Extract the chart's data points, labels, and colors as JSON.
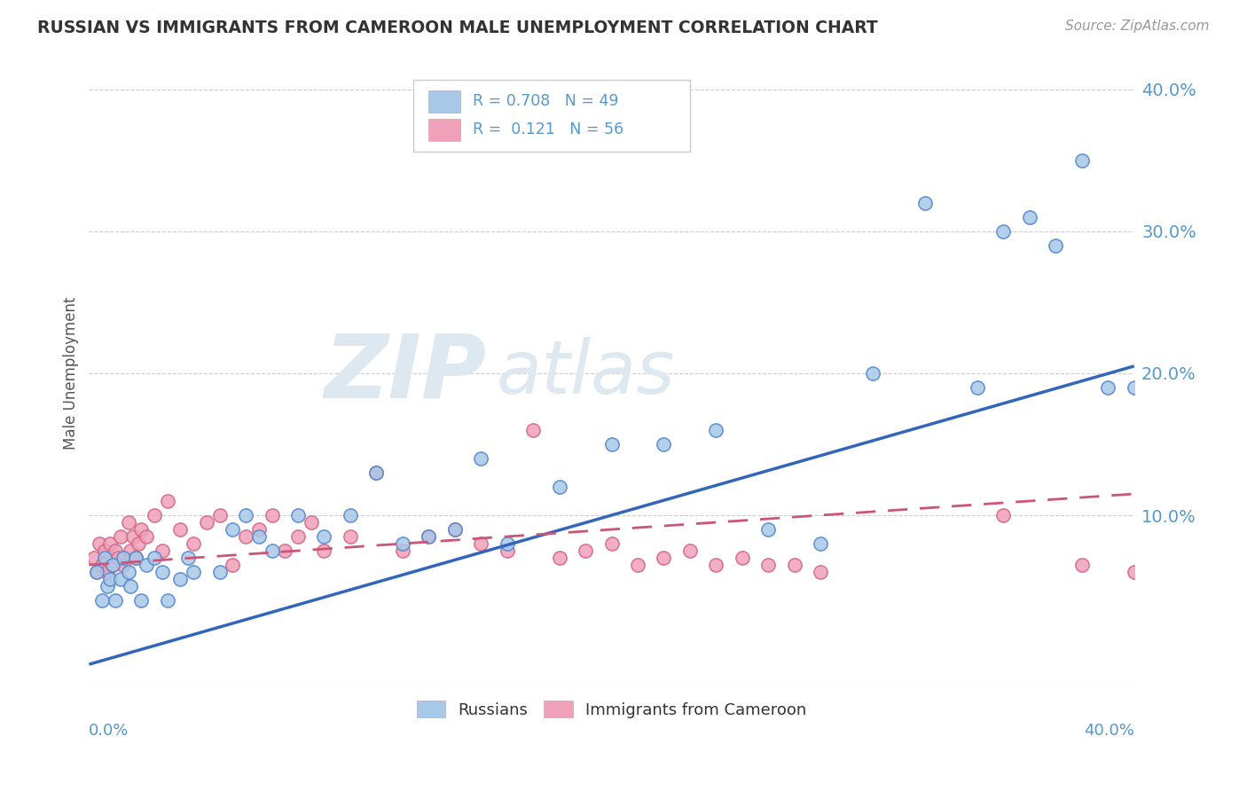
{
  "title": "RUSSIAN VS IMMIGRANTS FROM CAMEROON MALE UNEMPLOYMENT CORRELATION CHART",
  "source": "Source: ZipAtlas.com",
  "ylabel": "Male Unemployment",
  "blue_color": "#a8c8e8",
  "blue_color_dark": "#5588cc",
  "pink_color": "#f0a0b8",
  "pink_color_dark": "#d06888",
  "blue_line_color": "#3366bb",
  "pink_line_color": "#cc5577",
  "watermark_color": "#dde8f0",
  "grid_color": "#cccccc",
  "tick_color": "#5599cc",
  "title_color": "#333333",
  "source_color": "#999999",
  "ylabel_color": "#555555",
  "xlim": [
    0.0,
    0.4
  ],
  "ylim": [
    -0.02,
    0.42
  ],
  "ytick_positions": [
    0.0,
    0.1,
    0.2,
    0.3,
    0.4
  ],
  "ytick_labels": [
    "",
    "10.0%",
    "20.0%",
    "30.0%",
    "40.0%"
  ],
  "blue_line_x": [
    0.0,
    0.4
  ],
  "blue_line_y": [
    -0.005,
    0.205
  ],
  "pink_line_x": [
    0.0,
    0.4
  ],
  "pink_line_y": [
    0.065,
    0.115
  ],
  "rus_x": [
    0.003,
    0.005,
    0.006,
    0.007,
    0.008,
    0.009,
    0.01,
    0.012,
    0.013,
    0.015,
    0.016,
    0.018,
    0.02,
    0.022,
    0.025,
    0.028,
    0.03,
    0.035,
    0.038,
    0.04,
    0.05,
    0.055,
    0.06,
    0.065,
    0.07,
    0.08,
    0.09,
    0.1,
    0.11,
    0.12,
    0.13,
    0.14,
    0.15,
    0.16,
    0.18,
    0.2,
    0.22,
    0.24,
    0.26,
    0.28,
    0.3,
    0.32,
    0.34,
    0.35,
    0.36,
    0.37,
    0.38,
    0.39,
    0.4
  ],
  "rus_y": [
    0.06,
    0.04,
    0.07,
    0.05,
    0.055,
    0.065,
    0.04,
    0.055,
    0.07,
    0.06,
    0.05,
    0.07,
    0.04,
    0.065,
    0.07,
    0.06,
    0.04,
    0.055,
    0.07,
    0.06,
    0.06,
    0.09,
    0.1,
    0.085,
    0.075,
    0.1,
    0.085,
    0.1,
    0.13,
    0.08,
    0.085,
    0.09,
    0.14,
    0.08,
    0.12,
    0.15,
    0.15,
    0.16,
    0.09,
    0.08,
    0.2,
    0.32,
    0.19,
    0.3,
    0.31,
    0.29,
    0.35,
    0.19,
    0.19
  ],
  "cam_x": [
    0.002,
    0.003,
    0.004,
    0.005,
    0.006,
    0.007,
    0.008,
    0.009,
    0.01,
    0.011,
    0.012,
    0.013,
    0.015,
    0.016,
    0.017,
    0.018,
    0.019,
    0.02,
    0.022,
    0.025,
    0.028,
    0.03,
    0.035,
    0.04,
    0.045,
    0.05,
    0.055,
    0.06,
    0.065,
    0.07,
    0.075,
    0.08,
    0.085,
    0.09,
    0.1,
    0.11,
    0.12,
    0.13,
    0.14,
    0.15,
    0.16,
    0.17,
    0.18,
    0.19,
    0.2,
    0.21,
    0.22,
    0.23,
    0.24,
    0.25,
    0.26,
    0.27,
    0.28,
    0.35,
    0.38,
    0.4
  ],
  "cam_y": [
    0.07,
    0.06,
    0.08,
    0.065,
    0.075,
    0.06,
    0.08,
    0.065,
    0.075,
    0.07,
    0.085,
    0.065,
    0.095,
    0.075,
    0.085,
    0.07,
    0.08,
    0.09,
    0.085,
    0.1,
    0.075,
    0.11,
    0.09,
    0.08,
    0.095,
    0.1,
    0.065,
    0.085,
    0.09,
    0.1,
    0.075,
    0.085,
    0.095,
    0.075,
    0.085,
    0.13,
    0.075,
    0.085,
    0.09,
    0.08,
    0.075,
    0.16,
    0.07,
    0.075,
    0.08,
    0.065,
    0.07,
    0.075,
    0.065,
    0.07,
    0.065,
    0.065,
    0.06,
    0.1,
    0.065,
    0.06
  ]
}
